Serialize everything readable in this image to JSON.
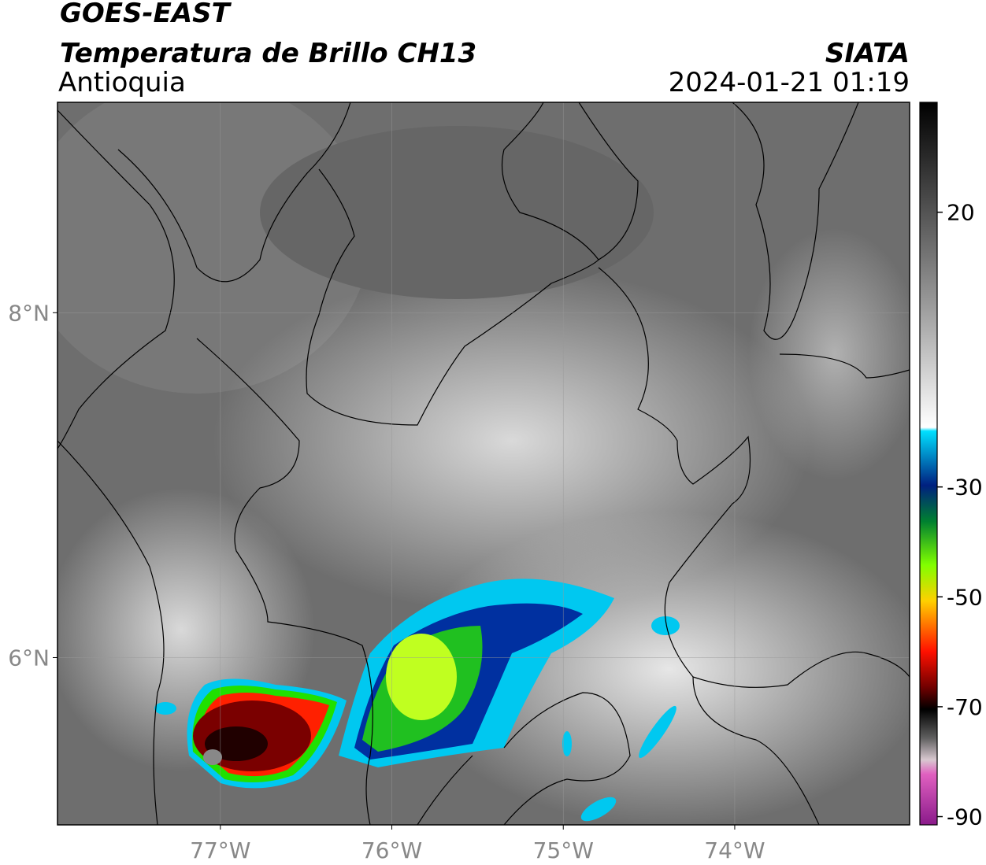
{
  "header": {
    "title": "GOES-EAST",
    "subtitle": "Temperatura de Brillo CH13",
    "region": "Antioquia",
    "source": "SIATA",
    "datetime": "2024-01-21 01:19"
  },
  "map": {
    "xlim": [
      -77.95,
      -72.98
    ],
    "ylim": [
      5.03,
      9.22
    ],
    "xticks": [
      {
        "value": -77,
        "label": "77°W"
      },
      {
        "value": -76,
        "label": "76°W"
      },
      {
        "value": -75,
        "label": "75°W"
      },
      {
        "value": -74,
        "label": "74°W"
      }
    ],
    "yticks": [
      {
        "value": 8,
        "label": "8°N"
      },
      {
        "value": 6,
        "label": "6°N"
      }
    ]
  },
  "colorbar": {
    "lim": [
      -91.5,
      40
    ],
    "ticks": [
      20,
      -30,
      -50,
      -70,
      -90
    ]
  }
}
